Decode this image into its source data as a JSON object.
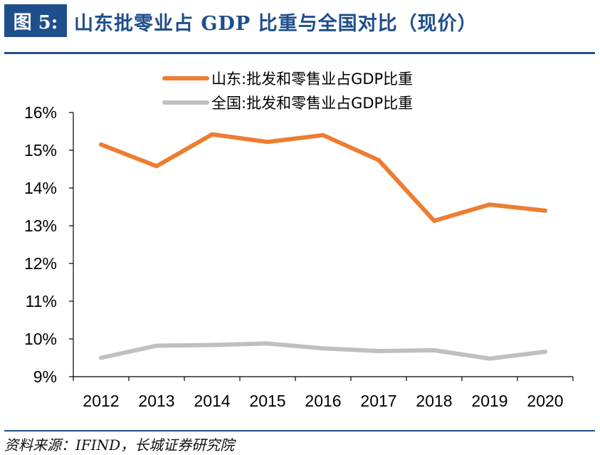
{
  "header": {
    "figure_label": "图 5:",
    "title": "山东批零业占 GDP 比重与全国对比（现价）"
  },
  "footer": {
    "source": "资料来源：IFIND，长城证券研究院"
  },
  "colors": {
    "accent": "#1f4e8c",
    "shandong": "#ed7d31",
    "national": "#bfbfbf"
  },
  "chart_data": {
    "type": "line",
    "x": [
      "2012",
      "2013",
      "2014",
      "2015",
      "2016",
      "2017",
      "2018",
      "2019",
      "2020"
    ],
    "series": [
      {
        "name": "山东:批发和零售业占GDP比重",
        "color": "#ed7d31",
        "values": [
          15.15,
          14.58,
          15.42,
          15.22,
          15.4,
          14.74,
          13.13,
          13.56,
          13.4
        ]
      },
      {
        "name": "全国:批发和零售业占GDP比重",
        "color": "#bfbfbf",
        "values": [
          9.5,
          9.82,
          9.84,
          9.88,
          9.75,
          9.68,
          9.7,
          9.48,
          9.66
        ]
      }
    ],
    "yticks": [
      "16%",
      "15%",
      "14%",
      "13%",
      "12%",
      "11%",
      "10%",
      "9%"
    ],
    "ylim": [
      9,
      16
    ],
    "title": "",
    "xlabel": "",
    "ylabel": "",
    "legend_position": "top",
    "grid": false
  }
}
